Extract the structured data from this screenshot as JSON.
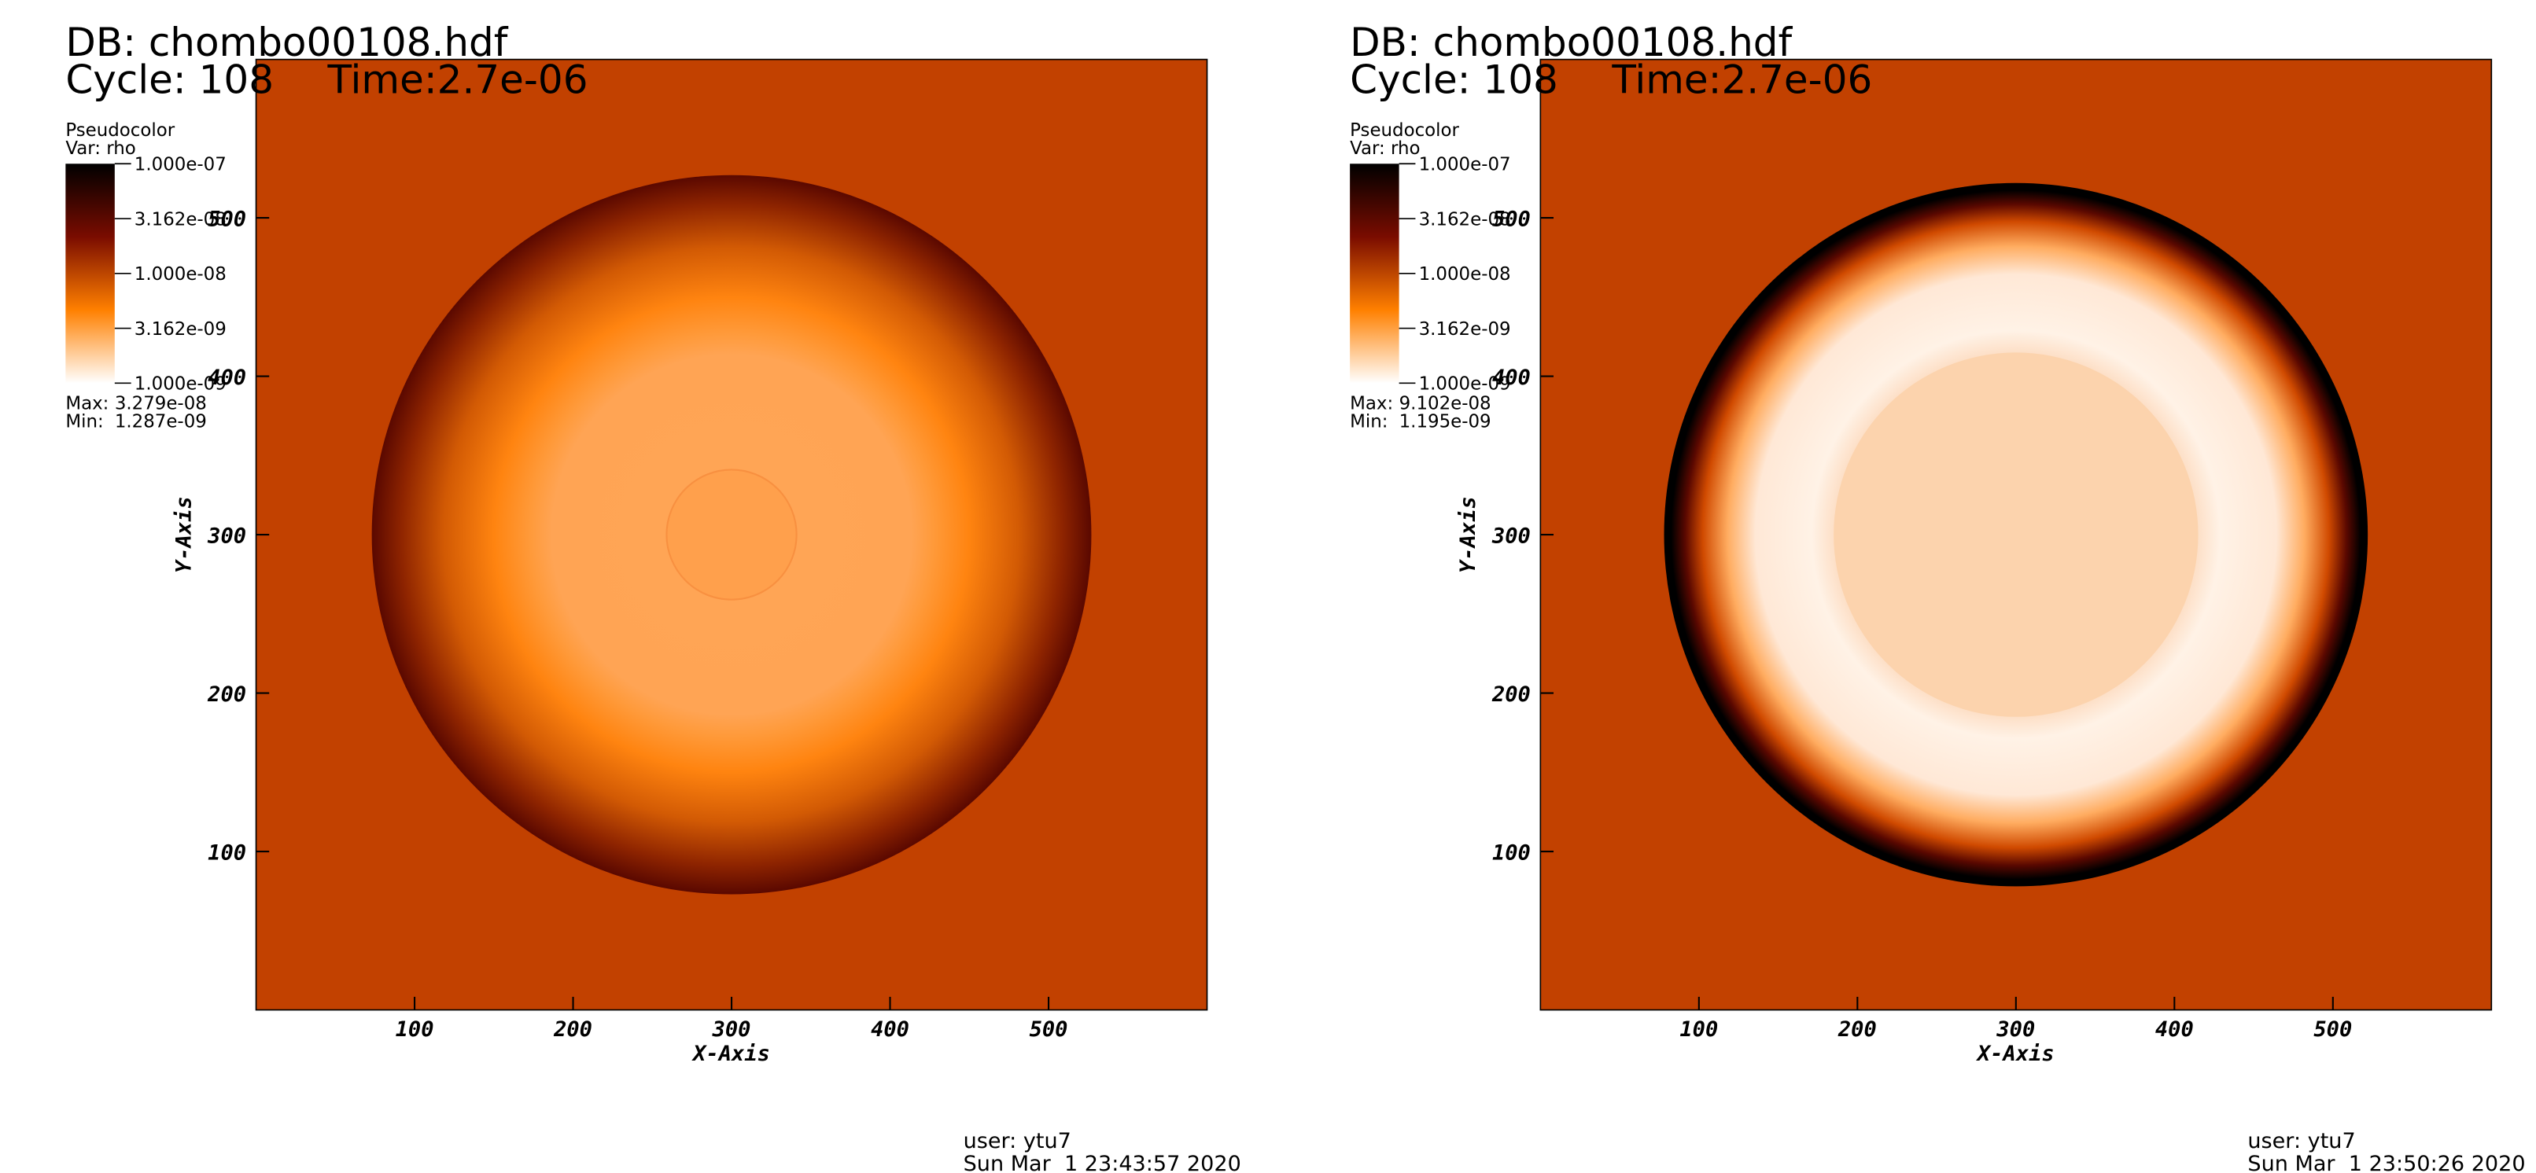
{
  "chart_data": [
    {
      "type": "pseudocolor",
      "title": "DB: chombo00108.hdf",
      "cycle": "Cycle: 108",
      "time": "Time:2.7e-06",
      "legend_title": "Pseudocolor",
      "variable": "Var: rho",
      "colorbar": {
        "scale": "log",
        "lim": [
          1e-09,
          1e-07
        ],
        "ticks": [
          {
            "value": 1e-07,
            "label": "1.000e-07"
          },
          {
            "value": 3.162e-08,
            "label": "3.162e-08"
          },
          {
            "value": 1e-08,
            "label": "1.000e-08"
          },
          {
            "value": 3.162e-09,
            "label": "3.162e-09"
          },
          {
            "value": 1e-09,
            "label": "1.000e-09"
          }
        ],
        "colors": [
          "#000000",
          "#7a0c00",
          "#ff8000",
          "#ffffff"
        ]
      },
      "max_label": "Max:",
      "max": {
        "value": 3.279e-08,
        "label": "3.279e-08"
      },
      "min_label": "Min:",
      "min": {
        "value": 1.287e-09,
        "label": "1.287e-09"
      },
      "xlabel": "X-Axis",
      "ylabel": "Y-Axis",
      "xlim": [
        0,
        600
      ],
      "ylim": [
        0,
        600
      ],
      "xticks": [
        100,
        200,
        300,
        400,
        500
      ],
      "yticks": [
        100,
        200,
        300,
        400,
        500
      ],
      "background": "#c24100",
      "user": "user: ytu7",
      "timestamp": "Sun Mar  1 23:43:57 2020"
    },
    {
      "type": "pseudocolor",
      "title": "DB: chombo00108.hdf",
      "cycle": "Cycle: 108",
      "time": "Time:2.7e-06",
      "legend_title": "Pseudocolor",
      "variable": "Var: rho",
      "colorbar": {
        "scale": "log",
        "lim": [
          1e-09,
          1e-07
        ],
        "ticks": [
          {
            "value": 1e-07,
            "label": "1.000e-07"
          },
          {
            "value": 3.162e-08,
            "label": "3.162e-08"
          },
          {
            "value": 1e-08,
            "label": "1.000e-08"
          },
          {
            "value": 3.162e-09,
            "label": "3.162e-09"
          },
          {
            "value": 1e-09,
            "label": "1.000e-09"
          }
        ],
        "colors": [
          "#000000",
          "#7a0c00",
          "#ff8000",
          "#ffffff"
        ]
      },
      "max_label": "Max:",
      "max": {
        "value": 9.102e-08,
        "label": "9.102e-08"
      },
      "min_label": "Min:",
      "min": {
        "value": 1.195e-09,
        "label": "1.195e-09"
      },
      "xlabel": "X-Axis",
      "ylabel": "Y-Axis",
      "xlim": [
        0,
        600
      ],
      "ylim": [
        0,
        600
      ],
      "xticks": [
        100,
        200,
        300,
        400,
        500
      ],
      "yticks": [
        100,
        200,
        300,
        400,
        500
      ],
      "background": "#c24100",
      "user": "user: ytu7",
      "timestamp": "Sun Mar  1 23:50:26 2020"
    }
  ]
}
